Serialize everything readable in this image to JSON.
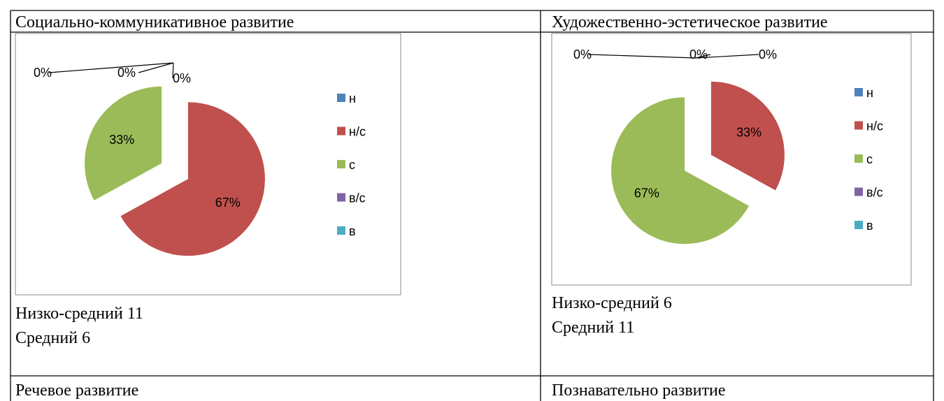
{
  "table": {
    "header": [
      "Социально-коммуникативное развитие",
      "Художественно-эстетическое развитие"
    ],
    "notes": [
      [
        "Низко-средний 11",
        "Средний 6"
      ],
      [
        "Низко-средний 6",
        "Средний 11"
      ]
    ],
    "footer": [
      "Речевое развитие",
      "Познавательно развитие"
    ]
  },
  "chart_data": [
    {
      "type": "pie",
      "categories": [
        "н",
        "н/с",
        "с",
        "в/с",
        "в"
      ],
      "values": [
        0,
        67,
        33,
        0,
        0
      ],
      "value_labels": [
        "0%",
        "67%",
        "33%",
        "0%",
        "0%"
      ],
      "colors": [
        "#4f81bd",
        "#c0504d",
        "#9bbb59",
        "#8064a2",
        "#4bacc6"
      ],
      "legend": "right"
    },
    {
      "type": "pie",
      "categories": [
        "н",
        "н/с",
        "с",
        "в/с",
        "в"
      ],
      "values": [
        0,
        33,
        67,
        0,
        0
      ],
      "value_labels": [
        "0%",
        "33%",
        "67%",
        "0%",
        "0%"
      ],
      "colors": [
        "#4f81bd",
        "#c0504d",
        "#9bbb59",
        "#8064a2",
        "#4bacc6"
      ],
      "legend": "right"
    }
  ]
}
